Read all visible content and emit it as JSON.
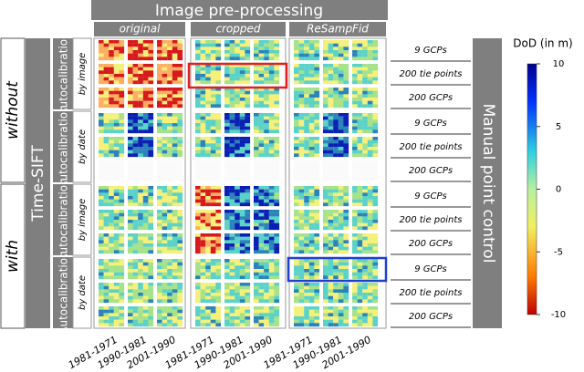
{
  "header": {
    "title": "Image pre-processing",
    "columns": [
      "original",
      "cropped",
      "ReSampFid"
    ]
  },
  "time_sift": {
    "title": "Time-SIFT",
    "groups": [
      {
        "label": "without",
        "blocks": [
          {
            "title": "Autocalibration",
            "subtitle": "by image"
          },
          {
            "title": "Autocalibration",
            "subtitle": "by date"
          }
        ]
      },
      {
        "label": "with",
        "blocks": [
          {
            "title": "Autocalibration",
            "subtitle": "by image"
          },
          {
            "title": "Autocalibration",
            "subtitle": "by date"
          }
        ]
      }
    ]
  },
  "manual_point_control": {
    "title": "Manual point control",
    "rows": [
      [
        "9 GCPs",
        "200 tie points",
        "200 GCPs"
      ],
      [
        "9 GCPs",
        "200 tie points",
        "200 GCPs"
      ],
      [
        "9 GCPs",
        "200 tie points",
        "200 GCPs"
      ],
      [
        "9 GCPs",
        "200 tie points",
        "200 GCPs"
      ]
    ]
  },
  "x_labels": [
    "1981-1971",
    "1990-1981",
    "2001-1990"
  ],
  "colorbar": {
    "title": "DoD (in m)",
    "lim": [
      -10,
      10
    ],
    "ticks": [
      10,
      5,
      0,
      -5,
      -10
    ]
  }
}
